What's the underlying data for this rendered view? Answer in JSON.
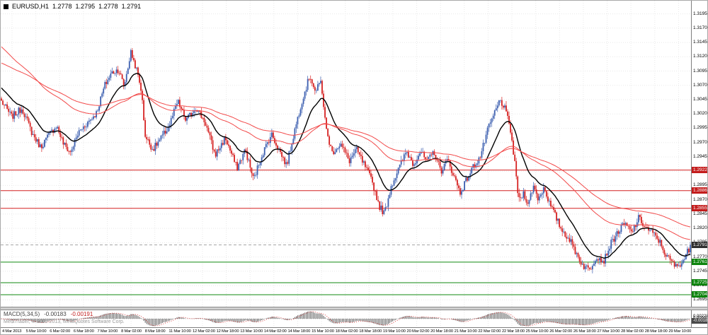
{
  "header": {
    "symbol": "EURUSD,H1",
    "open": "1.2778",
    "high": "1.2795",
    "low": "1.2778",
    "close": "1.2791"
  },
  "macd_panel": {
    "label": "MACD(5,34,5)",
    "main_value": "-0.00183",
    "signal_value": "-0.00191"
  },
  "footer": {
    "copyright": "MetaTrader, © 2001-2013, MetaQuotes Software Corp."
  },
  "chart_data": {
    "type": "candlestick",
    "symbol": "EURUSD",
    "timeframe": "H1",
    "colors": {
      "up": "#3c5fb0",
      "down": "#d62222",
      "grid": "#e8e8e8",
      "histogram": "#3a3a3a",
      "signal_line": "#d02020",
      "zero_line": "#b0b0b0",
      "current_price_box": "#2f2f2f",
      "current_price_line": "#888888"
    },
    "y_axis": {
      "max": 1.3218,
      "min": 1.2683,
      "ticks": [
        1.3195,
        1.317,
        1.3145,
        1.312,
        1.3095,
        1.307,
        1.3045,
        1.302,
        1.2995,
        1.297,
        1.2945,
        1.292,
        1.2895,
        1.287,
        1.2845,
        1.282,
        1.2795,
        1.277,
        1.2745,
        1.272,
        1.2695
      ]
    },
    "x_labels": [
      "4 Mar 2013",
      "5 Mar 10:00",
      "6 Mar 02:00",
      "6 Mar 18:00",
      "7 Mar 10:00",
      "8 Mar 02:00",
      "8 Mar 18:00",
      "11 Mar 10:00",
      "12 Mar 02:00",
      "12 Mar 18:00",
      "13 Mar 10:00",
      "14 Mar 02:00",
      "14 Mar 18:00",
      "15 Mar 10:00",
      "18 Mar 02:00",
      "18 Mar 18:00",
      "19 Mar 10:00",
      "20 Mar 02:00",
      "20 Mar 18:00",
      "21 Mar 10:00",
      "22 Mar 02:00",
      "22 Mar 18:00",
      "25 Mar 10:00",
      "26 Mar 02:00",
      "26 Mar 18:00",
      "27 Mar 10:00",
      "28 Mar 02:00",
      "28 Mar 18:00",
      "29 Mar 10:00"
    ],
    "levels": [
      {
        "price": 1.2922,
        "color": "#d42020",
        "box": "#c41c1c"
      },
      {
        "price": 1.2886,
        "color": "#d42020",
        "box": "#c41c1c"
      },
      {
        "price": 1.2855,
        "color": "#d42020",
        "box": "#c41c1c"
      },
      {
        "price": 1.2761,
        "color": "#128a12",
        "box": "#0e840e"
      },
      {
        "price": 1.2725,
        "color": "#128a12",
        "box": "#0e840e"
      },
      {
        "price": 1.2704,
        "color": "#128a12",
        "box": "#0e840e"
      }
    ],
    "current_price": 1.2791,
    "last_ohlc": {
      "o": 1.2778,
      "h": 1.2795,
      "l": 1.2778,
      "c": 1.2791
    },
    "moving_averages": [
      {
        "period": 20,
        "seed": 1.3068,
        "color": "#000000",
        "width": 1.4
      },
      {
        "period": 80,
        "seed": 1.314,
        "color": "#f24a4a",
        "width": 1
      },
      {
        "period": 130,
        "seed": 1.311,
        "color": "#f24a4a",
        "width": 1
      }
    ],
    "macd": {
      "fast": 5,
      "slow": 34,
      "signal": 5,
      "main": -0.00183,
      "signal_value": -0.00191,
      "axis_ticks": [
        0.00228,
        0,
        -0.00228
      ]
    },
    "price_path": [
      [
        0.0,
        1.3042
      ],
      [
        0.015,
        1.3015
      ],
      [
        0.03,
        1.303
      ],
      [
        0.045,
        1.2985
      ],
      [
        0.057,
        1.2962
      ],
      [
        0.07,
        1.2985
      ],
      [
        0.08,
        1.3
      ],
      [
        0.09,
        1.2968
      ],
      [
        0.1,
        1.2952
      ],
      [
        0.112,
        1.2988
      ],
      [
        0.125,
        1.3005
      ],
      [
        0.138,
        1.3022
      ],
      [
        0.15,
        1.307
      ],
      [
        0.16,
        1.3092
      ],
      [
        0.17,
        1.3098
      ],
      [
        0.178,
        1.3068
      ],
      [
        0.188,
        1.3128
      ],
      [
        0.196,
        1.3098
      ],
      [
        0.203,
        1.3062
      ],
      [
        0.209,
        1.298
      ],
      [
        0.22,
        1.2958
      ],
      [
        0.232,
        1.2978
      ],
      [
        0.243,
        1.2998
      ],
      [
        0.256,
        1.3042
      ],
      [
        0.268,
        1.3008
      ],
      [
        0.282,
        1.3032
      ],
      [
        0.296,
        1.3005
      ],
      [
        0.31,
        1.2948
      ],
      [
        0.325,
        1.2978
      ],
      [
        0.342,
        1.2925
      ],
      [
        0.354,
        1.2958
      ],
      [
        0.366,
        1.2905
      ],
      [
        0.378,
        1.2948
      ],
      [
        0.392,
        1.2985
      ],
      [
        0.404,
        1.2955
      ],
      [
        0.414,
        1.293
      ],
      [
        0.425,
        1.2988
      ],
      [
        0.436,
        1.3042
      ],
      [
        0.448,
        1.3088
      ],
      [
        0.456,
        1.3058
      ],
      [
        0.464,
        1.3078
      ],
      [
        0.471,
        1.2995
      ],
      [
        0.48,
        1.2952
      ],
      [
        0.492,
        1.2968
      ],
      [
        0.505,
        1.2938
      ],
      [
        0.515,
        1.2958
      ],
      [
        0.527,
        1.293
      ],
      [
        0.538,
        1.2902
      ],
      [
        0.549,
        1.2858
      ],
      [
        0.556,
        1.2846
      ],
      [
        0.566,
        1.2895
      ],
      [
        0.576,
        1.2922
      ],
      [
        0.588,
        1.2955
      ],
      [
        0.598,
        1.2932
      ],
      [
        0.608,
        1.2955
      ],
      [
        0.618,
        1.2936
      ],
      [
        0.628,
        1.2955
      ],
      [
        0.638,
        1.292
      ],
      [
        0.648,
        1.294
      ],
      [
        0.658,
        1.2908
      ],
      [
        0.666,
        1.2882
      ],
      [
        0.675,
        1.2905
      ],
      [
        0.685,
        1.2928
      ],
      [
        0.695,
        1.2945
      ],
      [
        0.706,
        1.2992
      ],
      [
        0.716,
        1.3022
      ],
      [
        0.724,
        1.3045
      ],
      [
        0.731,
        1.3028
      ],
      [
        0.739,
        1.2992
      ],
      [
        0.746,
        1.2925
      ],
      [
        0.751,
        1.2868
      ],
      [
        0.758,
        1.2882
      ],
      [
        0.765,
        1.2862
      ],
      [
        0.772,
        1.2895
      ],
      [
        0.779,
        1.2872
      ],
      [
        0.788,
        1.2892
      ],
      [
        0.796,
        1.2862
      ],
      [
        0.804,
        1.2842
      ],
      [
        0.813,
        1.2818
      ],
      [
        0.824,
        1.2802
      ],
      [
        0.834,
        1.2778
      ],
      [
        0.844,
        1.2755
      ],
      [
        0.854,
        1.2748
      ],
      [
        0.864,
        1.2772
      ],
      [
        0.874,
        1.2762
      ],
      [
        0.884,
        1.2792
      ],
      [
        0.894,
        1.2812
      ],
      [
        0.905,
        1.2828
      ],
      [
        0.915,
        1.2812
      ],
      [
        0.925,
        1.2838
      ],
      [
        0.935,
        1.2822
      ],
      [
        0.945,
        1.2812
      ],
      [
        0.955,
        1.2798
      ],
      [
        0.965,
        1.2772
      ],
      [
        0.98,
        1.2752
      ],
      [
        0.992,
        1.2768
      ],
      [
        1.0,
        1.2791
      ]
    ]
  }
}
